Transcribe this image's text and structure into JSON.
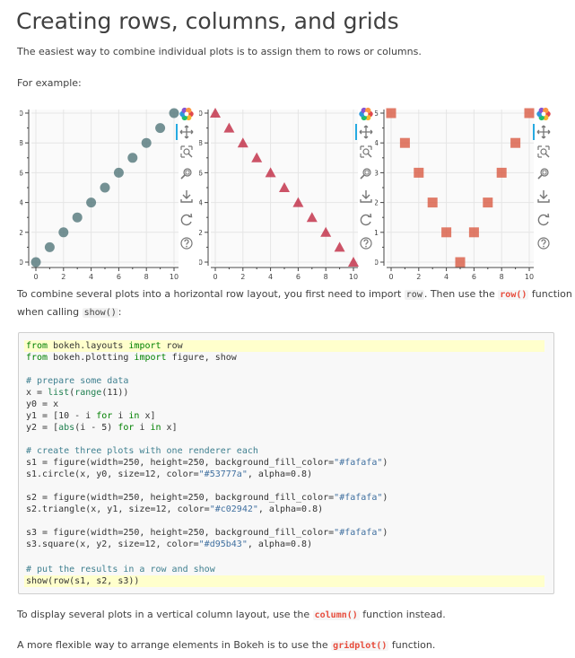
{
  "page": {
    "title": "Creating rows, columns, and grids",
    "intro": "The easiest way to combine individual plots is to assign them to rows or columns.",
    "example_label": "For example:"
  },
  "row_para": {
    "part1": "To combine several plots into a horizontal row layout, you first need to import ",
    "code1": "row",
    "part2": ". Then use the ",
    "code2": "row()",
    "part3": " function",
    "part4": "when calling ",
    "code3": "show()",
    "part5": ":"
  },
  "column_para": {
    "part1": "To display several plots in a vertical column layout, use the ",
    "code1": "column()",
    "part2": " function instead."
  },
  "grid_para": {
    "part1": "A more flexible way to arrange elements in Bokeh is to use the ",
    "code1": "gridplot()",
    "part2": " function."
  },
  "code": {
    "l01a": "from",
    "l01b": " bokeh.layouts ",
    "l01c": "import",
    "l01d": " row",
    "l02a": "from",
    "l02b": " bokeh.plotting ",
    "l02c": "import",
    "l02d": " figure, show",
    "l04": "# prepare some data",
    "l05a": "x = ",
    "l05b": "list",
    "l05c": "(",
    "l05d": "range",
    "l05e": "(11))",
    "l06": "y0 = x",
    "l07a": "y1 = [10 - i ",
    "l07b": "for",
    "l07c": " i ",
    "l07d": "in",
    "l07e": " x]",
    "l08a": "y2 = [",
    "l08b": "abs",
    "l08c": "(i - 5) ",
    "l08d": "for",
    "l08e": " i ",
    "l08f": "in",
    "l08g": " x]",
    "l10": "# create three plots with one renderer each",
    "l11a": "s1 = figure(width=250, height=250, background_fill_color=",
    "l11b": "\"#fafafa\"",
    "l11c": ")",
    "l12a": "s1.circle(x, y0, size=12, color=",
    "l12b": "\"#53777a\"",
    "l12c": ", alpha=0.8)",
    "l14a": "s2 = figure(width=250, height=250, background_fill_color=",
    "l14b": "\"#fafafa\"",
    "l14c": ")",
    "l15a": "s2.triangle(x, y1, size=12, color=",
    "l15b": "\"#c02942\"",
    "l15c": ", alpha=0.8)",
    "l17a": "s3 = figure(width=250, height=250, background_fill_color=",
    "l17b": "\"#fafafa\"",
    "l17c": ")",
    "l18a": "s3.square(x, y2, size=12, color=",
    "l18b": "\"#d95b43\"",
    "l18c": ", alpha=0.8)",
    "l20": "# put the results in a row and show",
    "l21": "show(row(s1, s2, s3))"
  },
  "toolbar": {
    "icons": [
      "bokeh-logo-icon",
      "pan-icon",
      "box-zoom-icon",
      "wheel-zoom-icon",
      "save-icon",
      "reset-icon",
      "help-icon"
    ]
  },
  "colors": {
    "circle": "#53777a",
    "triangle": "#c02942",
    "square": "#d95b43",
    "plot_bg": "#fafafa",
    "active_tool": "#26aae1"
  },
  "chart_data": [
    {
      "type": "scatter",
      "marker": "circle",
      "title": "",
      "xlabel": "",
      "ylabel": "",
      "x": [
        0,
        1,
        2,
        3,
        4,
        5,
        6,
        7,
        8,
        9,
        10
      ],
      "y": [
        0,
        1,
        2,
        3,
        4,
        5,
        6,
        7,
        8,
        9,
        10
      ],
      "xlim": [
        0,
        10
      ],
      "ylim": [
        0,
        10
      ],
      "xticks": [
        "0",
        "2",
        "4",
        "6",
        "8",
        "10"
      ],
      "yticks": [
        "0",
        "2",
        "4",
        "6",
        "8",
        "10"
      ],
      "color": "#53777a",
      "alpha": 0.8,
      "grid": true
    },
    {
      "type": "scatter",
      "marker": "triangle",
      "title": "",
      "xlabel": "",
      "ylabel": "",
      "x": [
        0,
        1,
        2,
        3,
        4,
        5,
        6,
        7,
        8,
        9,
        10
      ],
      "y": [
        10,
        9,
        8,
        7,
        6,
        5,
        4,
        3,
        2,
        1,
        0
      ],
      "xlim": [
        0,
        10
      ],
      "ylim": [
        0,
        10
      ],
      "xticks": [
        "0",
        "2",
        "4",
        "6",
        "8",
        "10"
      ],
      "yticks": [
        "0",
        "2",
        "4",
        "6",
        "8",
        "10"
      ],
      "color": "#c02942",
      "alpha": 0.8,
      "grid": true
    },
    {
      "type": "scatter",
      "marker": "square",
      "title": "",
      "xlabel": "",
      "ylabel": "",
      "x": [
        0,
        1,
        2,
        3,
        4,
        5,
        6,
        7,
        8,
        9,
        10
      ],
      "y": [
        5,
        4,
        3,
        2,
        1,
        0,
        1,
        2,
        3,
        4,
        5
      ],
      "xlim": [
        0,
        10
      ],
      "ylim": [
        0,
        5
      ],
      "xticks": [
        "0",
        "2",
        "4",
        "6",
        "8",
        "10"
      ],
      "yticks": [
        "0",
        "1",
        "2",
        "3",
        "4",
        "5"
      ],
      "color": "#d95b43",
      "alpha": 0.8,
      "grid": true
    }
  ]
}
